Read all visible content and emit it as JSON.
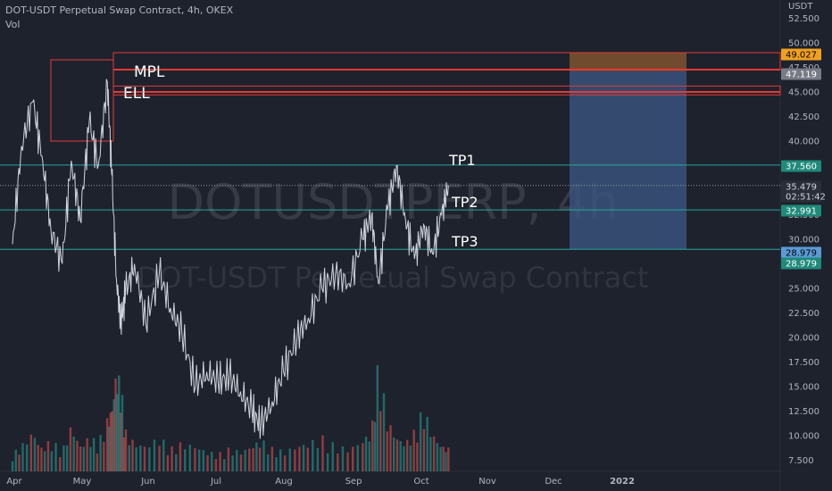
{
  "header": {
    "title": "DOT-USDT Perpetual Swap Contract, 4h, OKEX",
    "indicator": "Vol"
  },
  "watermark": {
    "symbol": "DOTUSDTPERP, 4h",
    "description": "DOT-USDT Perpetual Swap Contract"
  },
  "colors": {
    "background": "#1e222d",
    "price_line": "#d1d4dc",
    "tp_lines": "#26a69a",
    "zone_border": "#e53935",
    "short_stop_zone": "#8d5a2e",
    "short_target_zone": "#3c5a86",
    "vol_up": "#26a69a",
    "vol_down": "#ef5350",
    "label_stop": "#f0a020",
    "label_tp": "#1f8a7a",
    "label_current": "#2a2e39",
    "label_target": "#5b9bd5"
  },
  "chart_data": {
    "type": "line",
    "title": "DOT-USDT Perpetual Swap Contract, 4h, OKEX",
    "y_axis_unit": "USDT",
    "ylim": [
      7.5,
      52.5
    ],
    "y_ticks": [
      "52.500",
      "50.000",
      "47.500",
      "45.000",
      "42.500",
      "40.000",
      "37.500",
      "35.000",
      "32.500",
      "30.000",
      "27.500",
      "25.000",
      "22.500",
      "20.000",
      "17.500",
      "15.000",
      "12.500",
      "10.000",
      "7.500"
    ],
    "x_ticks": [
      "Apr",
      "May",
      "Jun",
      "Jul",
      "Aug",
      "Sep",
      "Oct",
      "Nov",
      "Dec",
      "2022"
    ],
    "series": [
      {
        "x": [
          "2021-04-01",
          "2021-04-05",
          "2021-04-10",
          "2021-04-14",
          "2021-04-18",
          "2021-04-23",
          "2021-04-27",
          "2021-05-01",
          "2021-05-05",
          "2021-05-09",
          "2021-05-13",
          "2021-05-15",
          "2021-05-17",
          "2021-05-19",
          "2021-05-21",
          "2021-05-25",
          "2021-05-30",
          "2021-06-05",
          "2021-06-10",
          "2021-06-15",
          "2021-06-21",
          "2021-06-26",
          "2021-07-01",
          "2021-07-06",
          "2021-07-11",
          "2021-07-16",
          "2021-07-20",
          "2021-07-25",
          "2021-07-30",
          "2021-08-05",
          "2021-08-10",
          "2021-08-16",
          "2021-08-22",
          "2021-08-28",
          "2021-09-03",
          "2021-09-07",
          "2021-09-10",
          "2021-09-14",
          "2021-09-18",
          "2021-09-22",
          "2021-09-26",
          "2021-09-30",
          "2021-10-04",
          "2021-10-08",
          "2021-10-11"
        ],
        "y": [
          29.5,
          39.5,
          44.0,
          38.5,
          31.0,
          27.5,
          38.0,
          32.0,
          42.0,
          37.5,
          46.0,
          36.5,
          26.0,
          21.5,
          24.5,
          27.5,
          21.5,
          26.5,
          23.0,
          20.5,
          15.0,
          16.5,
          15.5,
          16.0,
          14.5,
          12.5,
          11.0,
          13.5,
          16.5,
          20.0,
          22.0,
          25.0,
          26.5,
          25.5,
          30.0,
          32.5,
          25.5,
          33.0,
          37.5,
          32.0,
          28.0,
          31.5,
          28.5,
          32.5,
          35.479
        ]
      }
    ],
    "volume": [
      6,
      9,
      14,
      8,
      11,
      7,
      16,
      9,
      12,
      10,
      18,
      22,
      35,
      30,
      14,
      10,
      9,
      12,
      8,
      10,
      9,
      7,
      6,
      8,
      7,
      9,
      11,
      8,
      7,
      9,
      10,
      12,
      9,
      8,
      11,
      14,
      38,
      18,
      12,
      10,
      14,
      22,
      13,
      9,
      8
    ],
    "levels": [
      {
        "name": "TP1",
        "value": 37.56
      },
      {
        "name": "TP2",
        "value": 32.991
      },
      {
        "name": "TP3",
        "value": 28.979
      }
    ],
    "zones": [
      {
        "name": "MPL",
        "top": 49.0,
        "bottom": 47.3
      },
      {
        "name": "ELL",
        "top": 45.6,
        "bottom": 44.7
      }
    ],
    "short_position": {
      "stop": 49.027,
      "entry": 47.119,
      "target": 28.979
    },
    "price_labels": [
      {
        "value": "49.027",
        "role": "stop"
      },
      {
        "value": "47.119",
        "role": "entry"
      },
      {
        "value": "37.560",
        "role": "tp"
      },
      {
        "value": "35.479",
        "role": "current"
      },
      {
        "value": "02:51:42",
        "role": "countdown"
      },
      {
        "value": "32.991",
        "role": "tp"
      },
      {
        "value": "28.979",
        "role": "target"
      },
      {
        "value": "28.979",
        "role": "tp"
      }
    ]
  }
}
